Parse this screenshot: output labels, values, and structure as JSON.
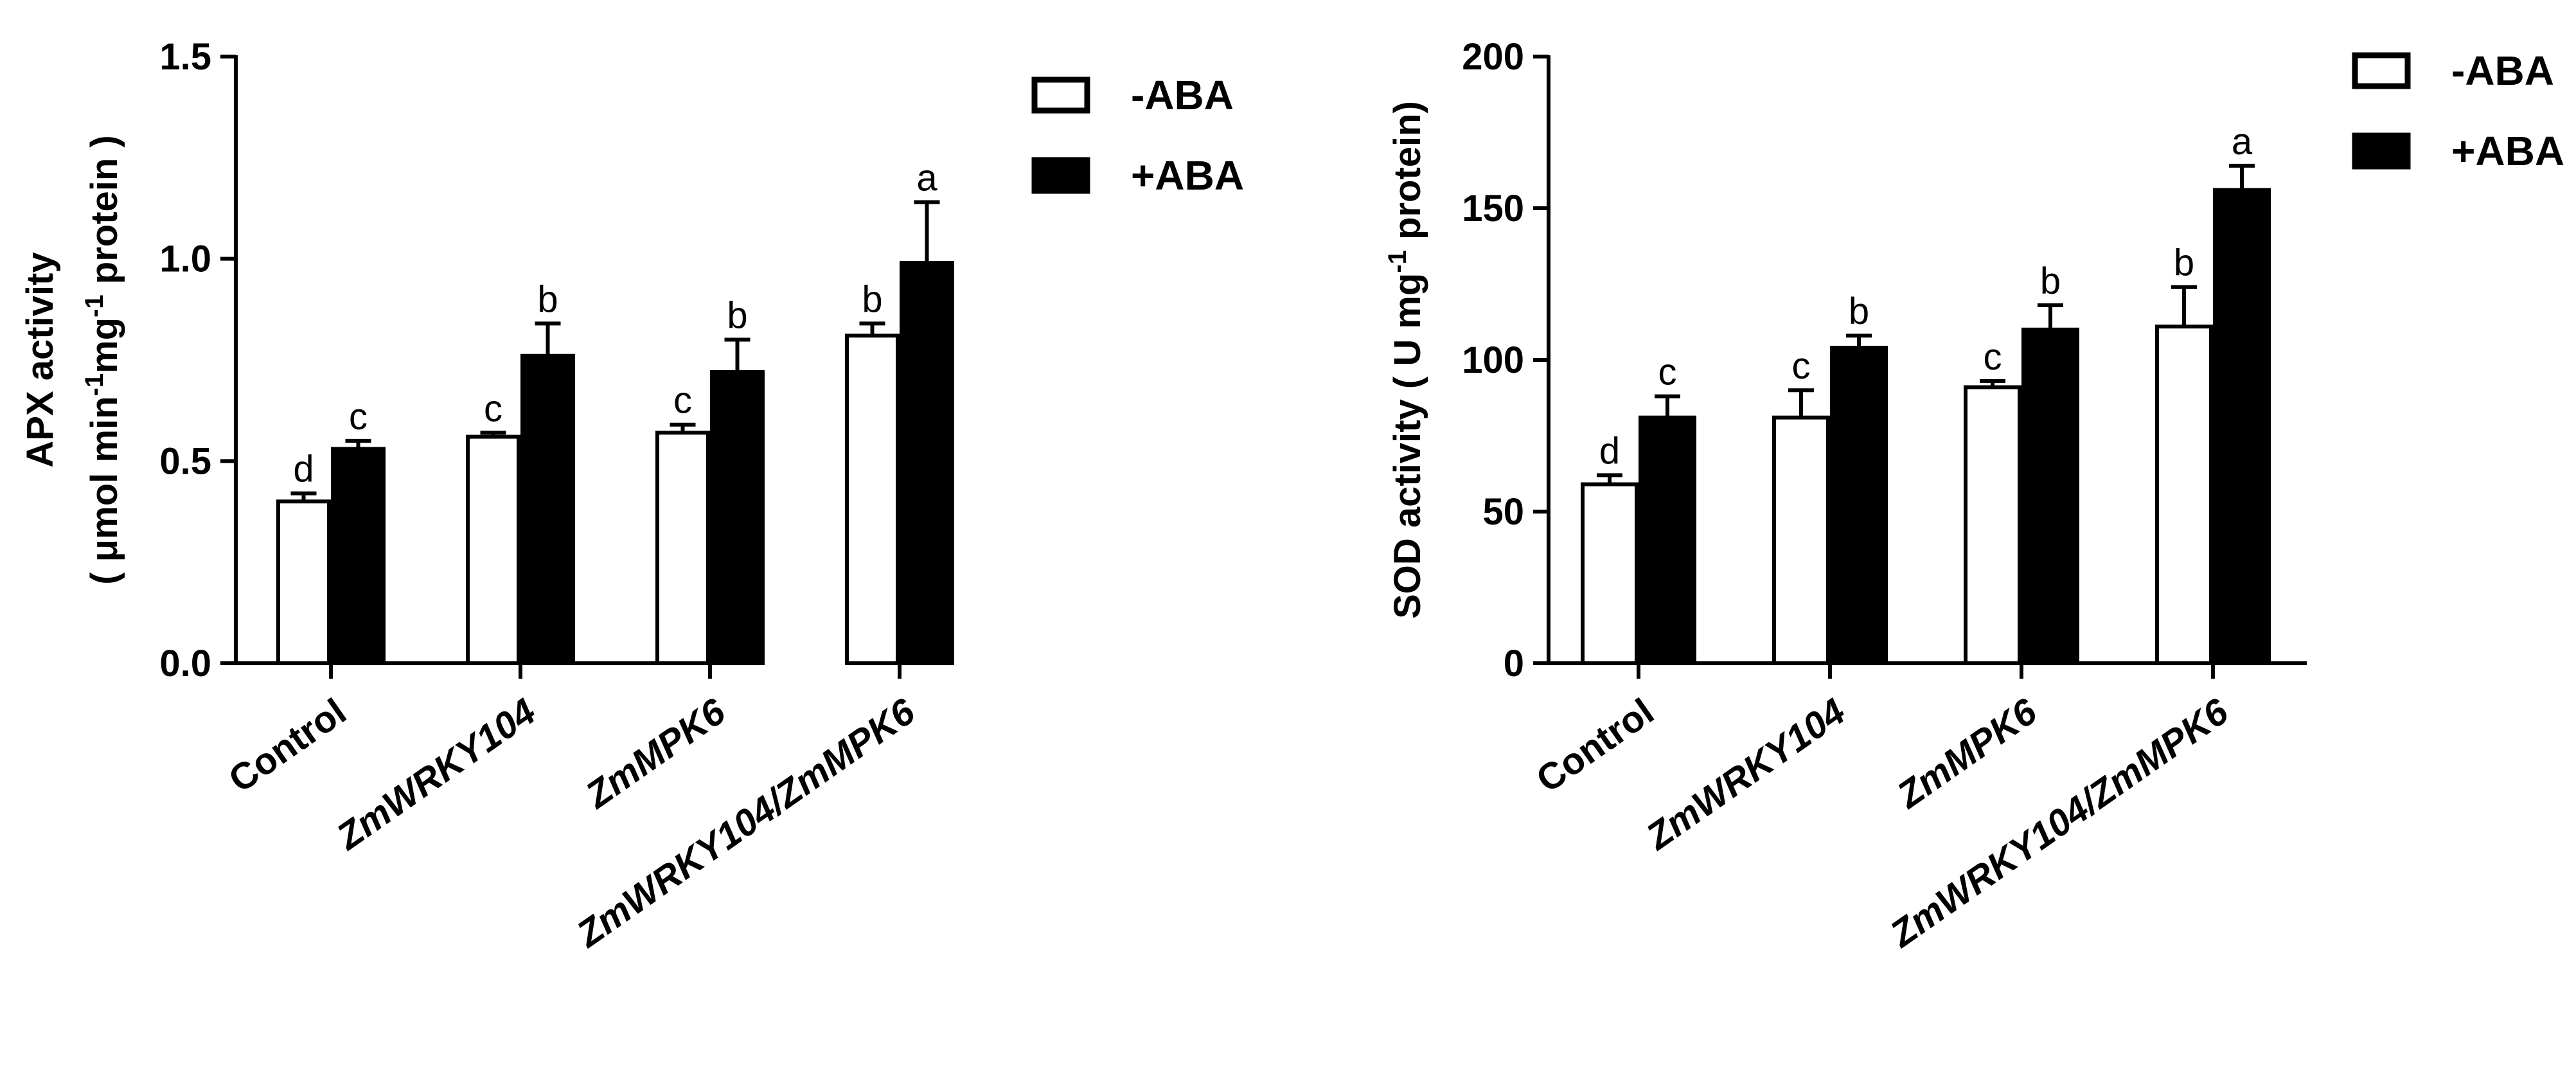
{
  "chart_data": [
    {
      "type": "bar",
      "categories": [
        "Control",
        "ZmWRKY104",
        "ZmMPK6",
        "ZmWRKY104/ZmMPK6"
      ],
      "category_italic": [
        false,
        true,
        true,
        true
      ],
      "ylabel_line1": "APX activity",
      "ylabel_line2": {
        "pre": "( μmol min",
        "sup1": "-1",
        "mid": "mg",
        "sup2": "-1",
        "post": " protein )"
      },
      "ylim": [
        0,
        1.5
      ],
      "yticks": [
        0.0,
        0.5,
        1.0,
        1.5
      ],
      "ytick_labels": [
        "0.0",
        "0.5",
        "1.0",
        "1.5"
      ],
      "legend_position": "top-right",
      "series": [
        {
          "name": "-ABA",
          "color": "#ffffff",
          "values": [
            0.4,
            0.56,
            0.57,
            0.81
          ],
          "errors": [
            0.02,
            0.01,
            0.02,
            0.03
          ],
          "labels": [
            "d",
            "c",
            "c",
            "b"
          ]
        },
        {
          "name": "+ABA",
          "color": "#000000",
          "values": [
            0.53,
            0.76,
            0.72,
            0.99
          ],
          "errors": [
            0.02,
            0.08,
            0.08,
            0.15
          ],
          "labels": [
            "c",
            "b",
            "b",
            "a"
          ]
        }
      ]
    },
    {
      "type": "bar",
      "categories": [
        "Control",
        "ZmWRKY104",
        "ZmMPK6",
        "ZmWRKY104/ZmMPK6"
      ],
      "category_italic": [
        false,
        true,
        true,
        true
      ],
      "ylabel_line1": "",
      "ylabel_line2": {
        "pre": "SOD activity ( U mg",
        "sup1": "-1",
        "mid": "",
        "sup2": "",
        "post": " protein)"
      },
      "ylim": [
        0,
        200
      ],
      "yticks": [
        0,
        50,
        100,
        150,
        200
      ],
      "ytick_labels": [
        "0",
        "50",
        "100",
        "150",
        "200"
      ],
      "legend_position": "top-right",
      "series": [
        {
          "name": "-ABA",
          "color": "#ffffff",
          "values": [
            59,
            81,
            91,
            111
          ],
          "errors": [
            3,
            9,
            2,
            13
          ],
          "labels": [
            "d",
            "c",
            "c",
            "b"
          ]
        },
        {
          "name": "+ABA",
          "color": "#000000",
          "values": [
            81,
            104,
            110,
            156
          ],
          "errors": [
            7,
            4,
            8,
            8
          ],
          "labels": [
            "c",
            "b",
            "b",
            "a"
          ]
        }
      ]
    }
  ]
}
